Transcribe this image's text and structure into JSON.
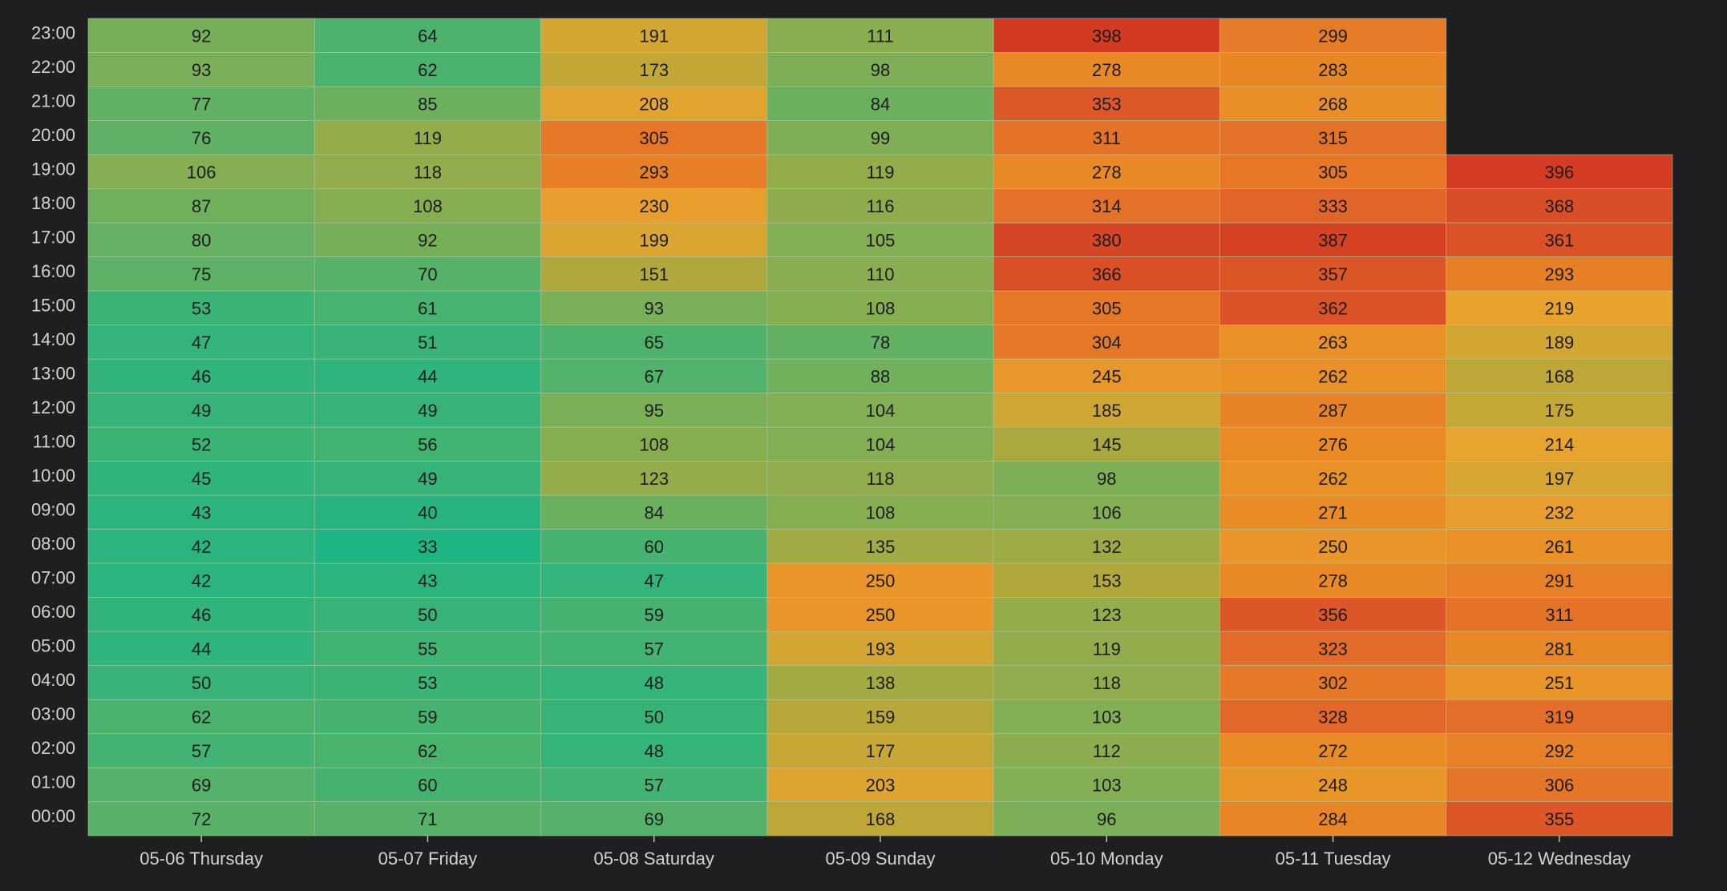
{
  "chart_data": {
    "type": "heatmap",
    "title": "",
    "xlabel": "",
    "ylabel": "",
    "x_categories": [
      "05-06 Thursday",
      "05-07 Friday",
      "05-08 Saturday",
      "05-09 Sunday",
      "05-10 Monday",
      "05-11 Tuesday",
      "05-12 Wednesday"
    ],
    "y_categories": [
      "00:00",
      "01:00",
      "02:00",
      "03:00",
      "04:00",
      "05:00",
      "06:00",
      "07:00",
      "08:00",
      "09:00",
      "10:00",
      "11:00",
      "12:00",
      "13:00",
      "14:00",
      "15:00",
      "16:00",
      "17:00",
      "18:00",
      "19:00",
      "20:00",
      "21:00",
      "22:00",
      "23:00"
    ],
    "values": [
      [
        72,
        69,
        57,
        62,
        50,
        44,
        46,
        42,
        42,
        43,
        45,
        52,
        49,
        46,
        47,
        53,
        75,
        80,
        87,
        106,
        76,
        77,
        93,
        92
      ],
      [
        71,
        60,
        62,
        59,
        53,
        55,
        50,
        43,
        33,
        40,
        49,
        56,
        49,
        44,
        51,
        61,
        70,
        92,
        108,
        118,
        119,
        85,
        62,
        64
      ],
      [
        69,
        57,
        48,
        50,
        48,
        57,
        59,
        47,
        60,
        84,
        123,
        108,
        95,
        67,
        65,
        93,
        151,
        199,
        230,
        293,
        305,
        208,
        173,
        191
      ],
      [
        168,
        203,
        177,
        159,
        138,
        193,
        250,
        250,
        135,
        108,
        118,
        104,
        104,
        88,
        78,
        108,
        110,
        105,
        116,
        119,
        99,
        84,
        98,
        111
      ],
      [
        96,
        103,
        112,
        103,
        118,
        119,
        123,
        153,
        132,
        106,
        98,
        145,
        185,
        245,
        304,
        305,
        366,
        380,
        314,
        278,
        311,
        353,
        278,
        398
      ],
      [
        284,
        248,
        272,
        328,
        302,
        323,
        356,
        278,
        250,
        271,
        262,
        276,
        287,
        262,
        263,
        362,
        357,
        387,
        333,
        305,
        315,
        268,
        283,
        299
      ],
      [
        355,
        306,
        292,
        319,
        251,
        281,
        311,
        291,
        261,
        232,
        197,
        214,
        175,
        168,
        189,
        219,
        293,
        361,
        368,
        396,
        null,
        null,
        null,
        null
      ]
    ],
    "color_scale": [
      "#1db584",
      "#7aaf58",
      "#b3a83a",
      "#e8a42e",
      "#e98a25",
      "#e0622a",
      "#d33a22"
    ],
    "value_range": [
      33,
      398
    ],
    "grid": true,
    "legend": "none",
    "background": "#1f1f21",
    "grid_line_color": "#a8c8a0"
  }
}
